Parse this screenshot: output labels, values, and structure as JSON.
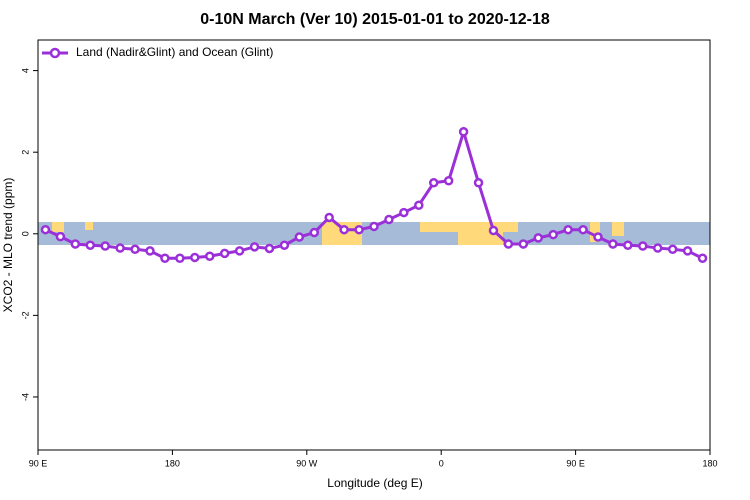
{
  "chart_data": {
    "type": "line",
    "title": "0-10N March (Ver 10)   2015-01-01 to 2020-12-18",
    "xlabel": "Longitude (deg E)",
    "ylabel": "XCO2 - MLO trend (ppm)",
    "legend": "upper left",
    "x": [
      95,
      105,
      115,
      125,
      135,
      145,
      155,
      165,
      175,
      185,
      195,
      205,
      215,
      225,
      235,
      245,
      255,
      265,
      275,
      285,
      295,
      305,
      315,
      325,
      335,
      345,
      355,
      365,
      375,
      385,
      395,
      405,
      415,
      425,
      435,
      445,
      455,
      465,
      475,
      485,
      495,
      505,
      515,
      525,
      535
    ],
    "series": [
      {
        "name": "Land (Nadir&Glint) and Ocean (Glint)",
        "color": "#9b30d9",
        "values": [
          0.1,
          -0.07,
          -0.25,
          -0.28,
          -0.3,
          -0.35,
          -0.38,
          -0.42,
          -0.6,
          -0.6,
          -0.58,
          -0.55,
          -0.48,
          -0.42,
          -0.32,
          -0.36,
          -0.28,
          -0.08,
          0.03,
          0.4,
          0.1,
          0.1,
          0.18,
          0.35,
          0.52,
          0.7,
          1.25,
          1.3,
          2.5,
          1.25,
          0.08,
          -0.25,
          -0.25,
          -0.1,
          -0.02,
          0.1,
          0.1,
          -0.08,
          -0.25,
          -0.28,
          -0.3,
          -0.35,
          -0.38,
          -0.42,
          -0.6
        ]
      }
    ],
    "xlim": [
      90,
      540
    ],
    "xticks": [
      {
        "value": 90,
        "label": "90 E"
      },
      180,
      {
        "value": 270,
        "label": "90 W"
      },
      {
        "value": 360,
        "label": "0"
      },
      {
        "value": 450,
        "label": "90 E"
      },
      {
        "value": 540,
        "label": "180"
      }
    ],
    "ylim": [
      -5.3,
      4.75
    ],
    "yticks": [
      -4,
      -2,
      0,
      2,
      4
    ]
  }
}
